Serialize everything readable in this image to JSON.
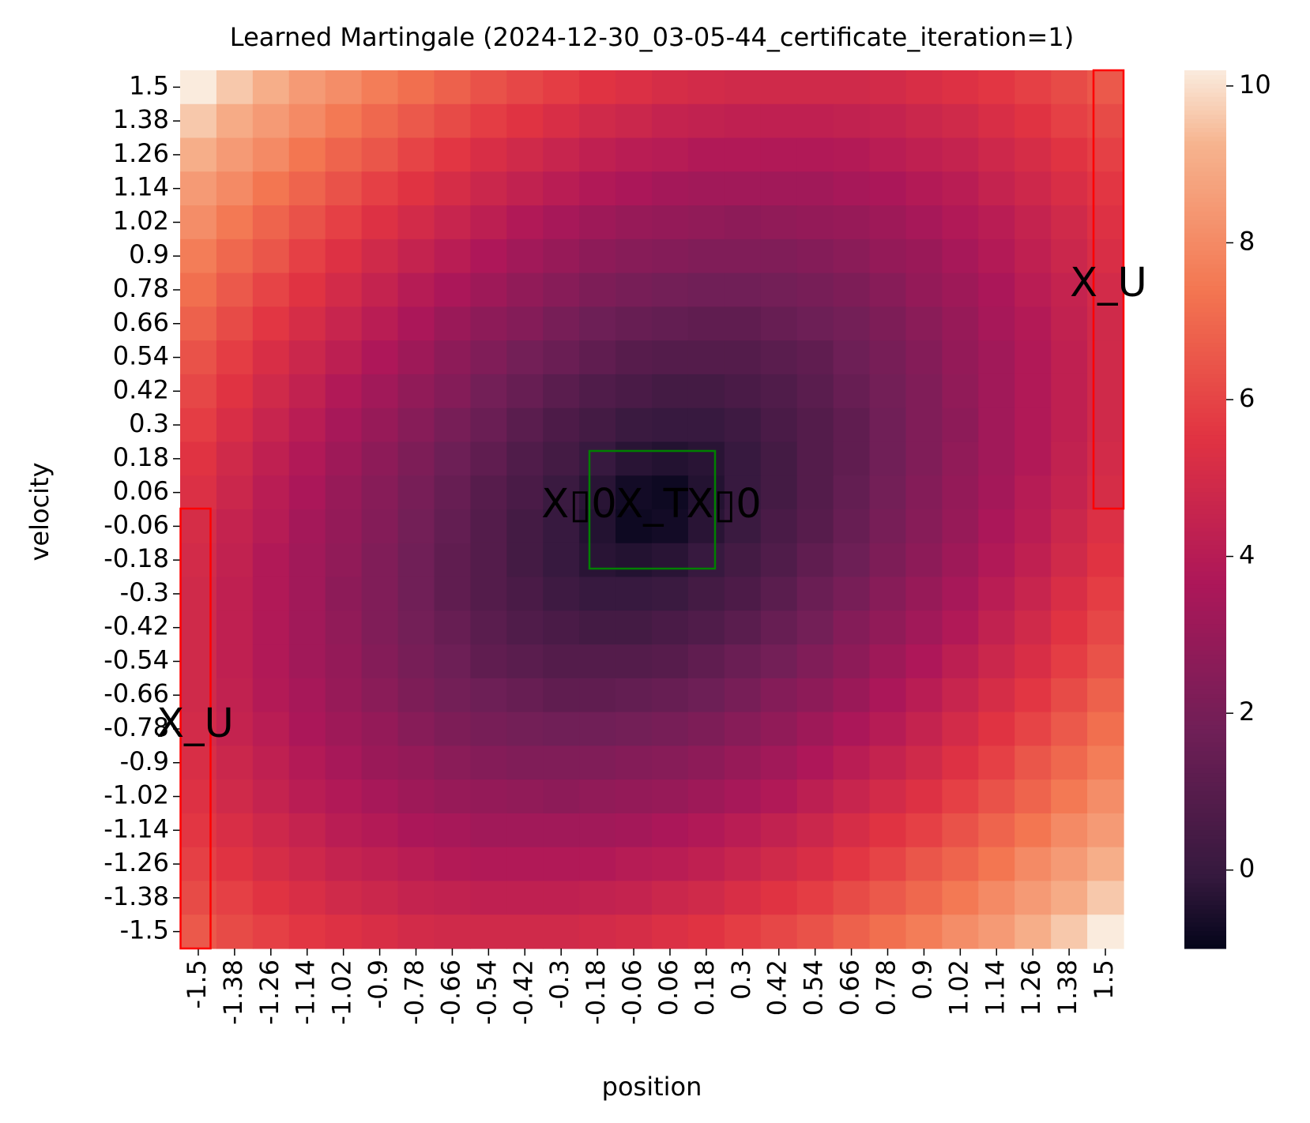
{
  "chart_data": {
    "type": "heatmap",
    "title": "Learned Martingale (2024-12-30_03-05-44_certificate_iteration=1)",
    "xlabel": "position",
    "ylabel": "velocity",
    "x_categories": [
      "-1.5",
      "-1.38",
      "-1.26",
      "-1.14",
      "-1.02",
      "-0.9",
      "-0.78",
      "-0.66",
      "-0.54",
      "-0.42",
      "-0.3",
      "-0.18",
      "-0.06",
      "0.06",
      "0.18",
      "0.3",
      "0.42",
      "0.54",
      "0.66",
      "0.78",
      "0.9",
      "1.02",
      "1.14",
      "1.26",
      "1.38",
      "1.5"
    ],
    "y_categories": [
      "1.5",
      "1.38",
      "1.26",
      "1.14",
      "1.02",
      "0.9",
      "0.78",
      "0.66",
      "0.54",
      "0.42",
      "0.3",
      "0.18",
      "0.06",
      "-0.06",
      "-0.18",
      "-0.3",
      "-0.42",
      "-0.54",
      "-0.66",
      "-0.78",
      "-0.9",
      "-1.02",
      "-1.14",
      "-1.26",
      "-1.38",
      "-1.5"
    ],
    "values": [
      [
        10.2,
        9.6,
        9.1,
        8.5,
        8.1,
        7.6,
        7.2,
        6.8,
        6.4,
        6.1,
        5.8,
        5.5,
        5.3,
        5.1,
        5.0,
        4.9,
        4.9,
        4.9,
        4.9,
        5.0,
        5.2,
        5.4,
        5.6,
        5.9,
        6.2,
        6.6
      ],
      [
        9.6,
        9.0,
        8.5,
        8.0,
        7.5,
        7.0,
        6.6,
        6.2,
        5.8,
        5.5,
        5.2,
        4.9,
        4.7,
        4.5,
        4.4,
        4.3,
        4.3,
        4.3,
        4.4,
        4.5,
        4.7,
        4.9,
        5.2,
        5.5,
        5.9,
        6.2
      ],
      [
        9.1,
        8.5,
        8.0,
        7.4,
        6.9,
        6.5,
        6.0,
        5.6,
        5.2,
        4.9,
        4.6,
        4.3,
        4.1,
        4.0,
        3.8,
        3.8,
        3.8,
        3.8,
        3.9,
        4.1,
        4.3,
        4.5,
        4.8,
        5.1,
        5.5,
        5.9
      ],
      [
        8.5,
        8.0,
        7.4,
        6.9,
        6.4,
        5.9,
        5.5,
        5.1,
        4.7,
        4.4,
        4.1,
        3.8,
        3.6,
        3.4,
        3.3,
        3.3,
        3.3,
        3.3,
        3.5,
        3.6,
        3.9,
        4.1,
        4.5,
        4.8,
        5.2,
        5.6
      ],
      [
        8.1,
        7.5,
        6.9,
        6.4,
        5.9,
        5.4,
        5.0,
        4.6,
        4.2,
        3.8,
        3.5,
        3.2,
        3.0,
        2.9,
        2.8,
        2.7,
        2.8,
        2.9,
        3.0,
        3.2,
        3.5,
        3.8,
        4.1,
        4.5,
        4.9,
        5.4
      ],
      [
        7.6,
        7.0,
        6.5,
        5.9,
        5.4,
        4.9,
        4.5,
        4.1,
        3.7,
        3.3,
        3.0,
        2.7,
        2.5,
        2.4,
        2.3,
        2.3,
        2.3,
        2.4,
        2.6,
        2.9,
        3.1,
        3.5,
        3.9,
        4.3,
        4.7,
        5.2
      ],
      [
        7.2,
        6.6,
        6.0,
        5.5,
        5.0,
        4.5,
        4.0,
        3.6,
        3.2,
        2.8,
        2.5,
        2.2,
        2.0,
        1.9,
        1.8,
        1.8,
        1.9,
        2.0,
        2.2,
        2.5,
        2.9,
        3.2,
        3.6,
        4.1,
        4.5,
        5.0
      ],
      [
        6.8,
        6.2,
        5.6,
        5.1,
        4.6,
        4.1,
        3.6,
        3.1,
        2.7,
        2.4,
        2.0,
        1.7,
        1.5,
        1.4,
        1.3,
        1.3,
        1.5,
        1.7,
        1.9,
        2.2,
        2.6,
        3.0,
        3.5,
        3.9,
        4.4,
        4.9
      ],
      [
        6.4,
        5.8,
        5.2,
        4.7,
        4.2,
        3.7,
        3.2,
        2.7,
        2.3,
        1.9,
        1.6,
        1.3,
        1.0,
        0.9,
        0.9,
        0.9,
        1.1,
        1.3,
        1.7,
        2.0,
        2.4,
        2.9,
        3.3,
        3.8,
        4.3,
        4.9
      ],
      [
        6.1,
        5.5,
        4.9,
        4.4,
        3.8,
        3.3,
        2.8,
        2.4,
        1.9,
        1.5,
        1.1,
        0.8,
        0.6,
        0.4,
        0.4,
        0.6,
        0.8,
        1.1,
        1.5,
        1.9,
        2.3,
        2.8,
        3.3,
        3.8,
        4.3,
        4.9
      ],
      [
        5.8,
        5.2,
        4.6,
        4.1,
        3.5,
        3.0,
        2.5,
        2.0,
        1.6,
        1.1,
        0.7,
        0.4,
        0.1,
        0.0,
        0.0,
        0.2,
        0.6,
        0.9,
        1.3,
        1.8,
        2.3,
        2.7,
        3.3,
        3.8,
        4.3,
        4.9
      ],
      [
        5.5,
        4.9,
        4.3,
        3.8,
        3.2,
        2.7,
        2.2,
        1.7,
        1.3,
        0.8,
        0.4,
        0.0,
        -0.3,
        -0.4,
        -0.3,
        0.0,
        0.4,
        0.9,
        1.3,
        1.8,
        2.3,
        2.8,
        3.3,
        3.8,
        4.4,
        5.0
      ],
      [
        5.3,
        4.7,
        4.1,
        3.6,
        3.0,
        2.5,
        2.0,
        1.5,
        1.0,
        0.6,
        0.1,
        -0.3,
        -0.7,
        -0.8,
        -0.4,
        0.0,
        0.4,
        0.9,
        1.4,
        1.9,
        2.4,
        2.9,
        3.4,
        4.0,
        4.5,
        5.1
      ],
      [
        5.1,
        4.5,
        4.0,
        3.4,
        2.9,
        2.4,
        1.9,
        1.4,
        0.9,
        0.4,
        0.0,
        -0.4,
        -0.8,
        -0.7,
        -0.3,
        0.1,
        0.6,
        1.0,
        1.5,
        2.0,
        2.5,
        3.0,
        3.6,
        4.1,
        4.7,
        5.3
      ],
      [
        5.0,
        4.4,
        3.8,
        3.3,
        2.8,
        2.3,
        1.8,
        1.3,
        0.9,
        0.4,
        0.0,
        -0.3,
        -0.4,
        -0.3,
        0.0,
        0.4,
        0.8,
        1.3,
        1.7,
        2.2,
        2.7,
        3.2,
        3.8,
        4.3,
        4.9,
        5.5
      ],
      [
        4.9,
        4.3,
        3.8,
        3.3,
        2.7,
        2.3,
        1.8,
        1.3,
        0.9,
        0.6,
        0.2,
        0.0,
        0.0,
        0.1,
        0.4,
        0.7,
        1.1,
        1.6,
        2.0,
        2.5,
        3.0,
        3.5,
        4.1,
        4.6,
        5.2,
        5.8
      ],
      [
        4.9,
        4.3,
        3.8,
        3.3,
        2.8,
        2.3,
        1.9,
        1.5,
        1.1,
        0.8,
        0.6,
        0.4,
        0.4,
        0.6,
        0.8,
        1.1,
        1.5,
        1.9,
        2.4,
        2.8,
        3.3,
        3.8,
        4.4,
        4.9,
        5.5,
        6.1
      ],
      [
        4.9,
        4.3,
        3.8,
        3.3,
        2.9,
        2.4,
        2.0,
        1.7,
        1.3,
        1.1,
        0.9,
        0.9,
        0.9,
        1.0,
        1.3,
        1.6,
        1.9,
        2.3,
        2.7,
        3.2,
        3.7,
        4.2,
        4.7,
        5.2,
        5.8,
        6.4
      ],
      [
        4.9,
        4.4,
        3.9,
        3.5,
        3.0,
        2.6,
        2.2,
        1.9,
        1.7,
        1.5,
        1.3,
        1.3,
        1.4,
        1.5,
        1.7,
        2.0,
        2.4,
        2.7,
        3.1,
        3.6,
        4.1,
        4.6,
        5.1,
        5.6,
        6.2,
        6.8
      ],
      [
        5.0,
        4.5,
        4.1,
        3.6,
        3.2,
        2.9,
        2.5,
        2.2,
        2.0,
        1.9,
        1.8,
        1.8,
        1.9,
        2.0,
        2.2,
        2.5,
        2.8,
        3.2,
        3.6,
        4.0,
        4.5,
        5.0,
        5.5,
        6.0,
        6.6,
        7.2
      ],
      [
        5.2,
        4.7,
        4.3,
        3.9,
        3.5,
        3.1,
        2.9,
        2.6,
        2.4,
        2.3,
        2.3,
        2.3,
        2.4,
        2.5,
        2.7,
        3.0,
        3.3,
        3.7,
        4.1,
        4.5,
        4.9,
        5.4,
        5.9,
        6.5,
        7.0,
        7.6
      ],
      [
        5.4,
        4.9,
        4.5,
        4.1,
        3.8,
        3.5,
        3.2,
        3.0,
        2.9,
        2.8,
        2.7,
        2.8,
        2.9,
        3.0,
        3.2,
        3.5,
        3.8,
        4.2,
        4.6,
        5.0,
        5.4,
        5.9,
        6.4,
        6.9,
        7.5,
        8.1
      ],
      [
        5.6,
        5.2,
        4.8,
        4.5,
        4.1,
        3.9,
        3.6,
        3.5,
        3.3,
        3.3,
        3.3,
        3.3,
        3.4,
        3.6,
        3.8,
        4.1,
        4.4,
        4.7,
        5.1,
        5.5,
        5.9,
        6.4,
        6.9,
        7.4,
        8.0,
        8.5
      ],
      [
        5.9,
        5.5,
        5.1,
        4.8,
        4.5,
        4.3,
        4.1,
        3.9,
        3.8,
        3.8,
        3.8,
        3.8,
        4.0,
        4.1,
        4.3,
        4.6,
        4.9,
        5.2,
        5.6,
        6.0,
        6.5,
        6.9,
        7.4,
        8.0,
        8.5,
        9.1
      ],
      [
        6.2,
        5.9,
        5.5,
        5.2,
        4.9,
        4.7,
        4.5,
        4.4,
        4.3,
        4.3,
        4.3,
        4.4,
        4.5,
        4.7,
        4.9,
        5.2,
        5.5,
        5.8,
        6.2,
        6.6,
        7.0,
        7.5,
        8.0,
        8.5,
        9.0,
        9.6
      ],
      [
        6.6,
        6.2,
        5.9,
        5.6,
        5.4,
        5.2,
        5.0,
        4.9,
        4.9,
        4.9,
        4.9,
        5.0,
        5.1,
        5.3,
        5.5,
        5.8,
        6.1,
        6.4,
        6.8,
        7.2,
        7.6,
        8.1,
        8.5,
        9.1,
        9.6,
        10.2
      ]
    ],
    "colormap": "rocket",
    "clim": [
      -1.0,
      10.2
    ],
    "cticks": [
      0,
      2,
      4,
      6,
      8,
      10
    ],
    "regions": [
      {
        "label": "X_U",
        "color": "red"
      },
      {
        "label": "X_U",
        "color": "red"
      },
      {
        "label": "X_T",
        "color": "green"
      },
      {
        "label": "X▯0",
        "color": "gold"
      },
      {
        "label": "X▯0",
        "color": "gold"
      }
    ]
  }
}
